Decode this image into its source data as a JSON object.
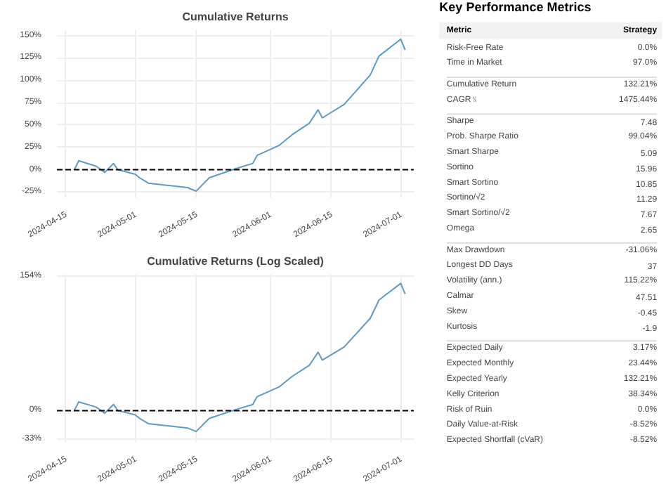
{
  "chart_data": [
    {
      "type": "line",
      "title": "Cumulative Returns",
      "x": [
        "2024-04-17",
        "2024-04-18",
        "2024-04-22",
        "2024-04-24",
        "2024-04-26",
        "2024-04-27",
        "2024-05-01",
        "2024-05-02",
        "2024-05-04",
        "2024-05-13",
        "2024-05-15",
        "2024-05-18",
        "2024-05-24",
        "2024-05-28",
        "2024-05-29",
        "2024-06-03",
        "2024-06-06",
        "2024-06-10",
        "2024-06-12",
        "2024-06-13",
        "2024-06-18",
        "2024-06-24",
        "2024-06-26",
        "2024-07-01",
        "2024-07-02"
      ],
      "series": [
        {
          "color": "#5b9bc4",
          "values": [
            0,
            10,
            4,
            -3,
            7,
            0,
            -5,
            -9,
            -15,
            -20,
            -24,
            -9,
            1,
            7,
            16,
            27,
            39,
            52,
            67,
            58,
            73,
            106,
            127,
            146,
            134
          ]
        }
      ],
      "xlim": [
        "2024-04-13",
        "2024-07-04"
      ],
      "xticks": [
        "2024-04-15",
        "2024-05-01",
        "2024-05-15",
        "2024-06-01",
        "2024-06-15",
        "2024-07-01"
      ],
      "ylim": [
        -31,
        156
      ],
      "yticks": [
        {
          "value": -25,
          "label": "-25%"
        },
        {
          "value": 0,
          "label": "0%"
        },
        {
          "value": 25,
          "label": "25%"
        },
        {
          "value": 50,
          "label": "50%"
        },
        {
          "value": 75,
          "label": "75%"
        },
        {
          "value": 100,
          "label": "100%"
        },
        {
          "value": 125,
          "label": "125%"
        },
        {
          "value": 150,
          "label": "150%"
        }
      ],
      "grid": true,
      "ref_lines": [
        {
          "axis": "y",
          "value": 0,
          "color": "#000000",
          "line_style": "dashed"
        }
      ]
    },
    {
      "type": "line",
      "title": "Cumulative Returns (Log Scaled)",
      "x": [
        "2024-04-17",
        "2024-04-18",
        "2024-04-22",
        "2024-04-24",
        "2024-04-26",
        "2024-04-27",
        "2024-05-01",
        "2024-05-02",
        "2024-05-04",
        "2024-05-13",
        "2024-05-15",
        "2024-05-18",
        "2024-05-24",
        "2024-05-28",
        "2024-05-29",
        "2024-06-03",
        "2024-06-06",
        "2024-06-10",
        "2024-06-12",
        "2024-06-13",
        "2024-06-18",
        "2024-06-24",
        "2024-06-26",
        "2024-07-01",
        "2024-07-02"
      ],
      "series": [
        {
          "color": "#5b9bc4",
          "values": [
            0,
            10,
            4,
            -3,
            7,
            0,
            -5,
            -9,
            -15,
            -20,
            -24,
            -9,
            1,
            7,
            16,
            27,
            39,
            52,
            67,
            58,
            73,
            106,
            127,
            146,
            134
          ]
        }
      ],
      "xlim": [
        "2024-04-13",
        "2024-07-04"
      ],
      "xticks": [
        "2024-04-15",
        "2024-05-01",
        "2024-05-15",
        "2024-06-01",
        "2024-06-15",
        "2024-07-01"
      ],
      "ylim": [
        -36,
        156
      ],
      "yticks": [
        {
          "value": -33,
          "label": "-33%"
        },
        {
          "value": 0,
          "label": "0%"
        },
        {
          "value": 154,
          "label": "154%"
        }
      ],
      "grid": true,
      "ref_lines": [
        {
          "axis": "y",
          "value": 0,
          "color": "#000000",
          "line_style": "dashed"
        }
      ]
    },
    {
      "type": "other",
      "title": "Key Performance Metrics",
      "xlabel": "Metric",
      "ylabel": "Strategy",
      "categories": [
        "Risk-Free Rate",
        "Time in Market",
        null,
        "Cumulative Return",
        "CAGR﹪",
        null,
        "Sharpe",
        "Prob. Sharpe Ratio",
        "Smart Sharpe",
        "Sortino",
        "Smart Sortino",
        "Sortino/√2",
        "Smart Sortino/√2",
        "Omega",
        null,
        "Max Drawdown",
        "Longest DD Days",
        "Volatility (ann.)",
        "Calmar",
        "Skew",
        "Kurtosis",
        null,
        "Expected Daily",
        "Expected Monthly",
        "Expected Yearly",
        "Kelly Criterion",
        "Risk of Ruin",
        "Daily Value-at-Risk",
        "Expected Shortfall (cVaR)"
      ],
      "value_labels": [
        "0.0%",
        "97.0%",
        null,
        "132.21%",
        "1475.44%",
        null,
        "7.48",
        "99.04%",
        "5.09",
        "15.96",
        "10.85",
        "11.29",
        "7.67",
        "2.65",
        null,
        "-31.06%",
        "37",
        "115.22%",
        "47.51",
        "-0.45",
        "-1.9",
        null,
        "3.17%",
        "23.44%",
        "132.21%",
        "38.34%",
        "0.0%",
        "-8.52%",
        "-8.52%"
      ]
    }
  ]
}
